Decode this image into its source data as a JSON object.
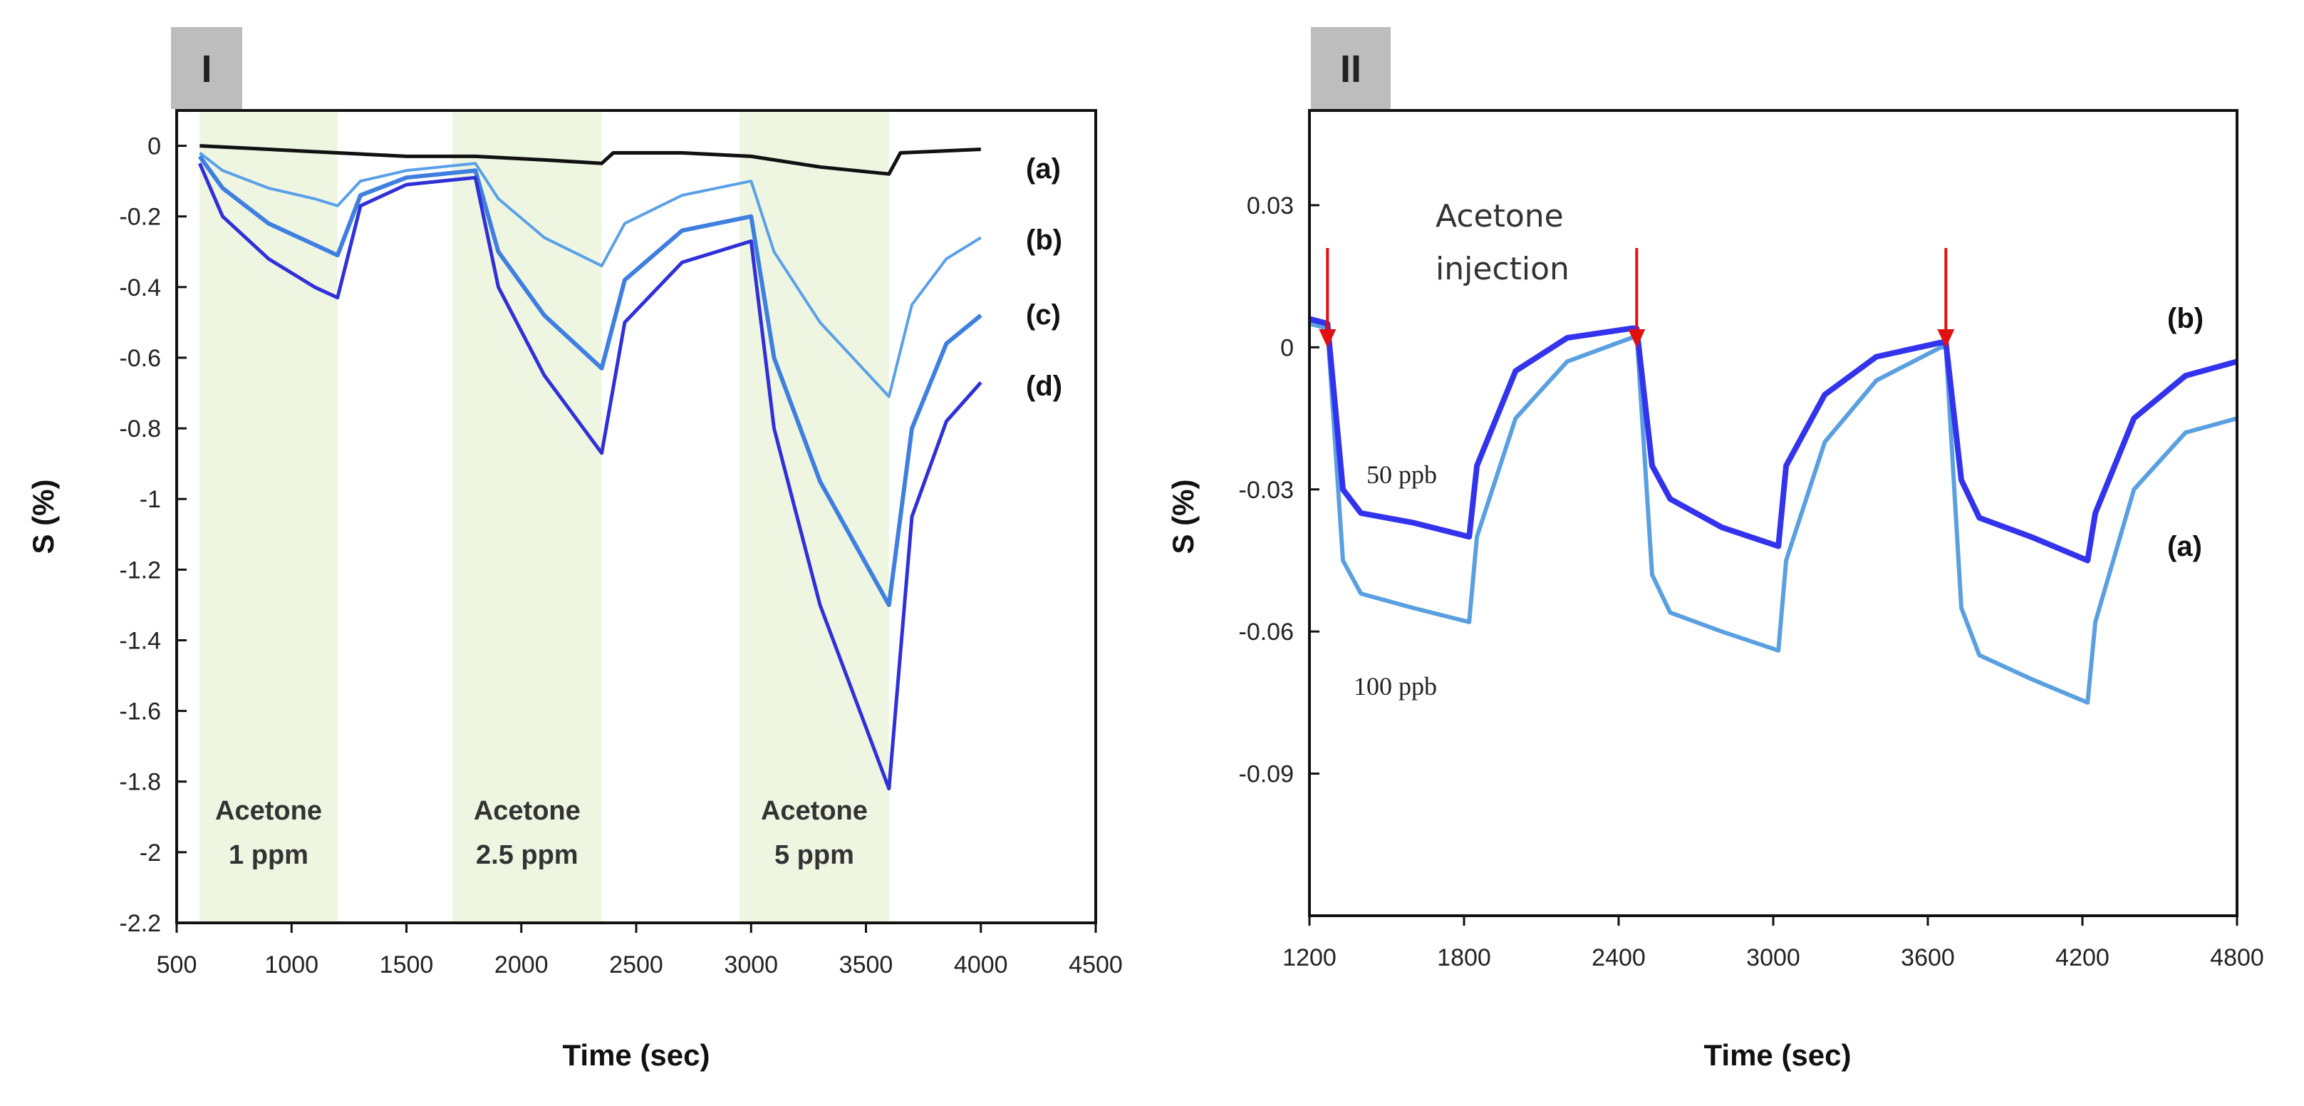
{
  "chart_data": [
    {
      "type": "line",
      "panel_label": "I",
      "title": "",
      "xlabel": "Time (sec)",
      "ylabel": "S (%)",
      "xlim": [
        500,
        4500
      ],
      "ylim": [
        -2.2,
        0.1
      ],
      "xticks": [
        "500",
        "1000",
        "1500",
        "2000",
        "2500",
        "3000",
        "3500",
        "4000",
        "4500"
      ],
      "yticks": [
        "0",
        "-0.2",
        "-0.4",
        "-0.6",
        "-0.8",
        "-1",
        "-1.2",
        "-1.4",
        "-1.6",
        "-1.8",
        "-2",
        "-2.2"
      ],
      "regions": [
        {
          "x0": 600,
          "x1": 1200,
          "label_line1": "Acetone",
          "label_line2": "1 ppm"
        },
        {
          "x0": 1700,
          "x1": 2350,
          "label_line1": "Acetone",
          "label_line2": "2.5 ppm"
        },
        {
          "x0": 2950,
          "x1": 3600,
          "label_line1": "Acetone",
          "label_line2": "5 ppm"
        }
      ],
      "series": [
        {
          "name": "(a)",
          "color": "#111111",
          "x": [
            600,
            900,
            1200,
            1500,
            1800,
            2100,
            2350,
            2400,
            2700,
            3000,
            3300,
            3600,
            3650,
            4000
          ],
          "y": [
            0,
            -0.01,
            -0.02,
            -0.03,
            -0.03,
            -0.04,
            -0.05,
            -0.02,
            -0.02,
            -0.03,
            -0.06,
            -0.08,
            -0.02,
            -0.01
          ]
        },
        {
          "name": "(b)",
          "color": "#5aa0e8",
          "x": [
            600,
            700,
            900,
            1100,
            1200,
            1300,
            1500,
            1800,
            1900,
            2100,
            2350,
            2450,
            2700,
            3000,
            3100,
            3300,
            3600,
            3700,
            3850,
            4000
          ],
          "y": [
            -0.02,
            -0.07,
            -0.12,
            -0.15,
            -0.17,
            -0.1,
            -0.07,
            -0.05,
            -0.15,
            -0.26,
            -0.34,
            -0.22,
            -0.14,
            -0.1,
            -0.3,
            -0.5,
            -0.71,
            -0.45,
            -0.32,
            -0.26
          ]
        },
        {
          "name": "(c)",
          "color": "#3f7fe0",
          "x": [
            600,
            700,
            900,
            1100,
            1200,
            1300,
            1500,
            1800,
            1900,
            2100,
            2350,
            2450,
            2700,
            3000,
            3100,
            3300,
            3600,
            3700,
            3850,
            4000
          ],
          "y": [
            -0.03,
            -0.12,
            -0.22,
            -0.28,
            -0.31,
            -0.14,
            -0.09,
            -0.07,
            -0.3,
            -0.48,
            -0.63,
            -0.38,
            -0.24,
            -0.2,
            -0.6,
            -0.95,
            -1.3,
            -0.8,
            -0.56,
            -0.48
          ]
        },
        {
          "name": "(d)",
          "color": "#3030d8",
          "x": [
            600,
            700,
            900,
            1100,
            1200,
            1300,
            1500,
            1800,
            1900,
            2100,
            2350,
            2450,
            2700,
            3000,
            3100,
            3300,
            3600,
            3700,
            3850,
            4000
          ],
          "y": [
            -0.05,
            -0.2,
            -0.32,
            -0.4,
            -0.43,
            -0.17,
            -0.11,
            -0.09,
            -0.4,
            -0.65,
            -0.87,
            -0.5,
            -0.33,
            -0.27,
            -0.8,
            -1.3,
            -1.82,
            -1.05,
            -0.78,
            -0.67
          ]
        }
      ]
    },
    {
      "type": "line",
      "panel_label": "II",
      "title": "",
      "xlabel": "Time (sec)",
      "ylabel": "S (%)",
      "xlim": [
        1200,
        4800
      ],
      "ylim": [
        -0.12,
        0.05
      ],
      "xticks": [
        "1200",
        "1800",
        "2400",
        "3000",
        "3600",
        "4200",
        "4800"
      ],
      "yticks": [
        "0.03",
        "0",
        "-0.03",
        "-0.06",
        "-0.09"
      ],
      "annotations": {
        "injection_line1": "Acetone",
        "injection_line2": "injection",
        "low_concentration": "50 ppb",
        "high_concentration": "100 ppb"
      },
      "injection_times": [
        1270,
        2470,
        3670
      ],
      "series": [
        {
          "name": "(a)",
          "color": "#5aa0e0",
          "x": [
            1200,
            1270,
            1330,
            1400,
            1600,
            1820,
            1850,
            2000,
            2200,
            2450,
            2470,
            2530,
            2600,
            2800,
            3020,
            3050,
            3200,
            3400,
            3650,
            3670,
            3730,
            3800,
            4000,
            4220,
            4250,
            4400,
            4600,
            4800
          ],
          "y": [
            0.005,
            0.004,
            -0.045,
            -0.052,
            -0.055,
            -0.058,
            -0.04,
            -0.015,
            -0.003,
            0.002,
            0.003,
            -0.048,
            -0.056,
            -0.06,
            -0.064,
            -0.045,
            -0.02,
            -0.007,
            0.0,
            0.0,
            -0.055,
            -0.065,
            -0.07,
            -0.075,
            -0.058,
            -0.03,
            -0.018,
            -0.015
          ]
        },
        {
          "name": "(b)",
          "color": "#3333ee",
          "x": [
            1200,
            1270,
            1330,
            1400,
            1600,
            1820,
            1850,
            2000,
            2200,
            2450,
            2470,
            2530,
            2600,
            2800,
            3020,
            3050,
            3200,
            3400,
            3650,
            3670,
            3730,
            3800,
            4000,
            4220,
            4250,
            4400,
            4600,
            4800
          ],
          "y": [
            0.006,
            0.005,
            -0.03,
            -0.035,
            -0.037,
            -0.04,
            -0.025,
            -0.005,
            0.002,
            0.004,
            0.004,
            -0.025,
            -0.032,
            -0.038,
            -0.042,
            -0.025,
            -0.01,
            -0.002,
            0.001,
            0.001,
            -0.028,
            -0.036,
            -0.04,
            -0.045,
            -0.035,
            -0.015,
            -0.006,
            -0.003
          ]
        }
      ]
    }
  ]
}
